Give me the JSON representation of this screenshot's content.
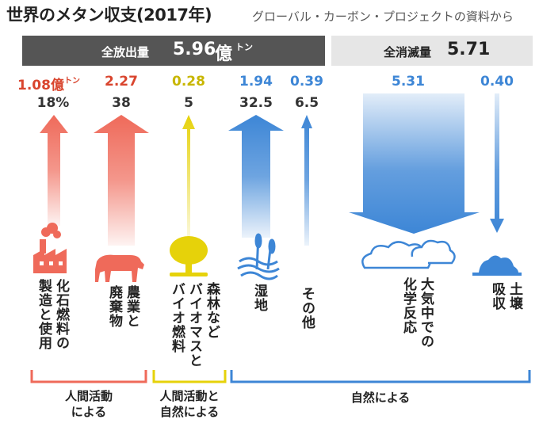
{
  "header": {
    "title": "世界のメタン収支(2017年)",
    "source": "グローバル・カーボン・プロジェクトの資料から"
  },
  "totals": {
    "emission_label": "全放出量",
    "emission_value": "5.96",
    "emission_unit": "億",
    "emission_unit_sup": "トン",
    "sink_label": "全消滅量",
    "sink_value": "5.71"
  },
  "colors": {
    "human": "#ef6a5a",
    "mixed": "#e6d20a",
    "natural": "#3d86d6",
    "value_human": "#d9452e",
    "value_mixed": "#c8b600",
    "value_natural": "#3d86d6"
  },
  "flows": [
    {
      "value": "1.08",
      "unit": "億",
      "unit_sup": "トン",
      "share": "18%",
      "label": "化石燃料の\n製造と使用",
      "icon": "factory-icon"
    },
    {
      "value": "2.27",
      "share": "38",
      "label": "農業と\n廃棄物",
      "icon": "cow-icon"
    },
    {
      "value": "0.28",
      "share": "5",
      "label": "森林など\nバイオマスと\nバイオ燃料",
      "icon": "tree-icon"
    },
    {
      "value": "1.94",
      "share": "32.5",
      "label": "湿地",
      "icon": "wetland-icon"
    },
    {
      "value": "0.39",
      "share": "6.5",
      "label": "その他",
      "icon": ""
    },
    {
      "value": "5.31",
      "label": "大気中での\n化学反応",
      "icon": "cloud-icon"
    },
    {
      "value": "0.40",
      "label": "土壌\n吸収",
      "icon": "soil-icon"
    }
  ],
  "categories": {
    "human": "人間活動\nによる",
    "mixed": "人間活動と\n自然による",
    "natural": "自然による"
  }
}
